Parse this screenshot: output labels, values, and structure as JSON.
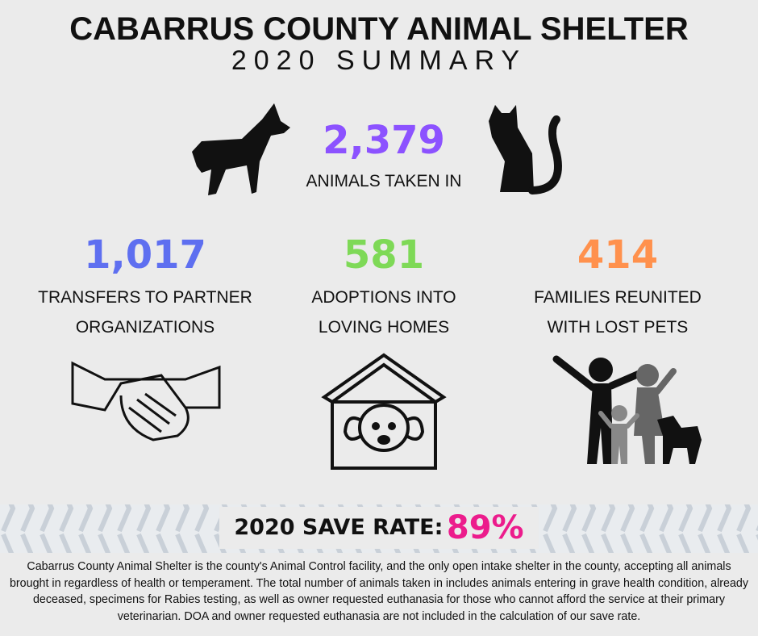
{
  "header": {
    "title": "CABARRUS COUNTY ANIMAL SHELTER",
    "subtitle": "2020 SUMMARY"
  },
  "main_stat": {
    "value": "2,379",
    "label": "ANIMALS TAKEN IN"
  },
  "stats": [
    {
      "value": "1,017",
      "label_lines": [
        "TRANSFERS TO PARTNER",
        "ORGANIZATIONS"
      ]
    },
    {
      "value": "581",
      "label_lines": [
        "ADOPTIONS INTO",
        "LOVING HOMES"
      ]
    },
    {
      "value": "414",
      "label_lines": [
        "FAMILIES REUNITED",
        "WITH LOST PETS"
      ]
    }
  ],
  "save_rate": {
    "label": "2020 SAVE RATE:",
    "value": "89%"
  },
  "footer": {
    "text": "Cabarrus County Animal Shelter is the county's Animal Control facility, and the only open intake shelter in the county, accepting all animals brought in regardless of health or temperament. The total number of animals taken in includes animals entering in grave health condition, already deceased, specimens for Rabies testing, as well as owner requested euthanasia for those who cannot afford the service at their primary veterinarian. DOA and owner requested euthanasia are not included in the calculation of our save rate."
  }
}
